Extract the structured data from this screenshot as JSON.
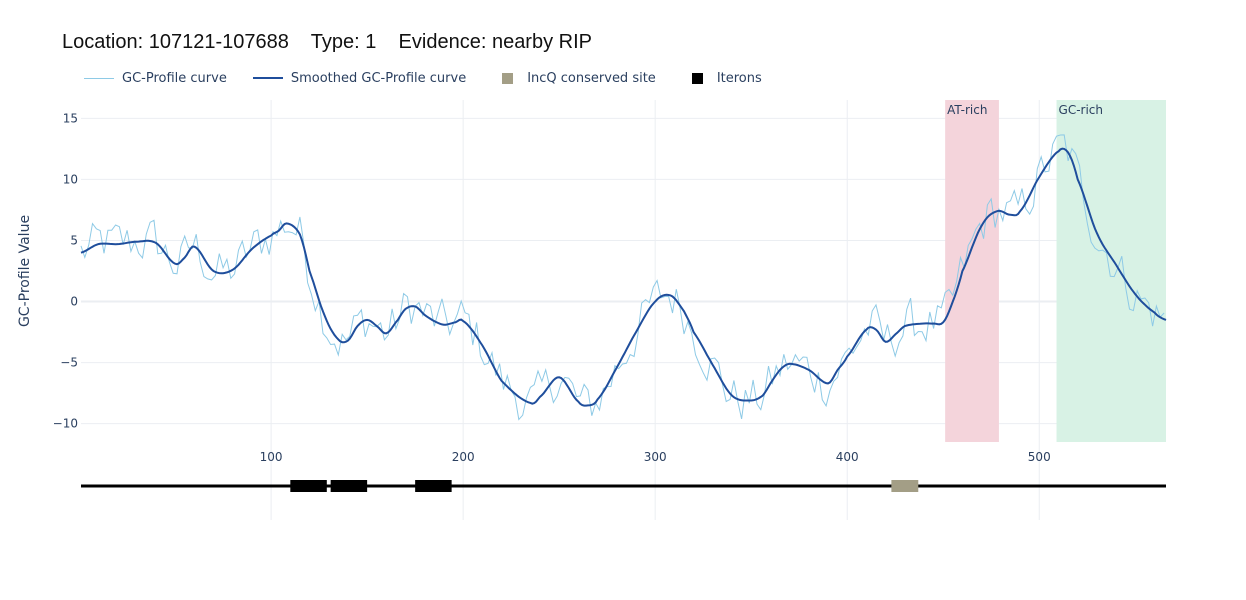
{
  "title": "Location: 107121-107688    Type: 1    Evidence: nearby RIP",
  "legend": [
    {
      "label": "GC-Profile curve",
      "kind": "line",
      "color": "#8ecae6",
      "width": 1
    },
    {
      "label": "Smoothed GC-Profile curve",
      "kind": "line",
      "color": "#1f4e9c",
      "width": 2
    },
    {
      "label": "IncQ conserved site",
      "kind": "square",
      "color": "#a39e86"
    },
    {
      "label": "Iterons",
      "kind": "square",
      "color": "#000000"
    }
  ],
  "chart_data": {
    "type": "line",
    "ylabel": "GC-Profile Value",
    "xlim": [
      1,
      566
    ],
    "ylim": [
      -11.5,
      16.5
    ],
    "x_ticks": [
      100,
      200,
      300,
      400,
      500
    ],
    "y_ticks": [
      -10,
      -5,
      0,
      5,
      10,
      15
    ],
    "grid": true,
    "legend_position": "top-left",
    "colors": {
      "raw": "#8ecae6",
      "smooth": "#1f4e9c",
      "grid": "#ebeef2",
      "track": "#000000"
    },
    "smoothed_anchors": {
      "x": [
        1,
        10,
        20,
        30,
        40,
        50,
        55,
        60,
        70,
        80,
        90,
        100,
        104,
        108,
        115,
        120,
        128,
        135,
        140,
        145,
        150,
        155,
        160,
        166,
        170,
        175,
        180,
        185,
        190,
        196,
        200,
        210,
        220,
        235,
        240,
        250,
        260,
        265,
        270,
        280,
        290,
        300,
        308,
        315,
        320,
        330,
        340,
        350,
        356,
        360,
        365,
        370,
        380,
        390,
        395,
        400,
        410,
        415,
        420,
        425,
        430,
        440,
        445,
        450,
        455,
        460,
        470,
        478,
        485,
        490,
        500,
        510,
        515,
        520,
        530,
        540,
        550,
        560,
        566
      ],
      "y": [
        4.0,
        4.7,
        4.7,
        4.9,
        4.8,
        3.1,
        3.6,
        4.5,
        2.5,
        2.6,
        4.3,
        5.4,
        5.8,
        6.4,
        5.5,
        2.5,
        -1.2,
        -3.1,
        -3.2,
        -2.0,
        -1.5,
        -2.0,
        -2.6,
        -1.5,
        -0.6,
        -0.4,
        -1.1,
        -1.6,
        -1.9,
        -1.7,
        -1.6,
        -3.6,
        -6.5,
        -8.3,
        -7.8,
        -6.2,
        -8.2,
        -8.5,
        -8.0,
        -5.4,
        -2.5,
        0.0,
        0.5,
        -0.8,
        -2.5,
        -5.2,
        -7.7,
        -8.1,
        -7.7,
        -6.7,
        -5.6,
        -5.1,
        -5.6,
        -6.7,
        -5.6,
        -4.5,
        -2.3,
        -2.3,
        -3.3,
        -2.7,
        -2.0,
        -1.8,
        -1.8,
        -1.7,
        0.0,
        2.5,
        6.2,
        7.4,
        7.1,
        7.4,
        10.2,
        12.3,
        12.2,
        10.0,
        5.6,
        3.0,
        0.6,
        -0.9,
        -1.5
      ]
    },
    "raw_noise": {
      "amplitude": 1.8
    },
    "regions": [
      {
        "label": "AT-rich",
        "x_start": 451,
        "x_end": 479,
        "color": "#f4d4db"
      },
      {
        "label": "GC-rich",
        "x_start": 509,
        "x_end": 566,
        "color": "#d8f2e5"
      }
    ],
    "features": [
      {
        "type": "Iterons",
        "x_start": 110,
        "x_end": 129,
        "color": "#000000"
      },
      {
        "type": "Iterons",
        "x_start": 131,
        "x_end": 150,
        "color": "#000000"
      },
      {
        "type": "Iterons",
        "x_start": 175,
        "x_end": 194,
        "color": "#000000"
      },
      {
        "type": "IncQ conserved site",
        "x_start": 423,
        "x_end": 437,
        "color": "#a39e86"
      }
    ]
  }
}
